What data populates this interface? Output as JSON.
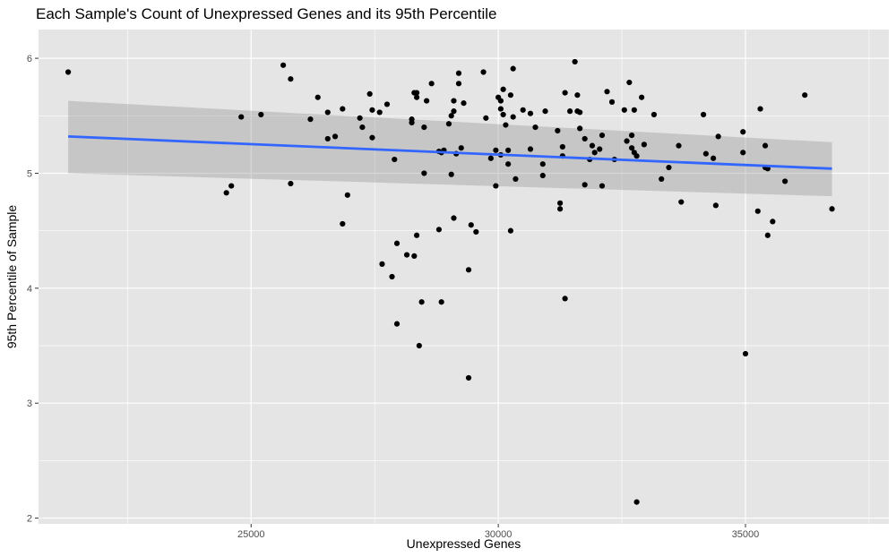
{
  "chart_data": {
    "type": "scatter",
    "title": "Each Sample's Count of Unexpressed Genes and its 95th Percentile",
    "xlabel": "Unexpressed Genes",
    "ylabel": "95th Percentile of Sample",
    "xlim": [
      20700,
      37900
    ],
    "ylim": [
      1.95,
      6.25
    ],
    "x_ticks": [
      25000,
      30000,
      35000
    ],
    "y_ticks": [
      2,
      3,
      4,
      5,
      6
    ],
    "x_tick_labels": [
      "25000",
      "30000",
      "35000"
    ],
    "y_tick_labels": [
      "2",
      "3",
      "4",
      "5",
      "6"
    ],
    "grid": true,
    "legend": "none",
    "colors": {
      "panel": "#e5e5e5",
      "grid": "#ffffff",
      "points": "#000000",
      "trend_line": "#3366ff",
      "ribbon": "#999999"
    },
    "trend": {
      "method": "linear",
      "x": [
        21300,
        36750
      ],
      "y": [
        5.32,
        5.04
      ],
      "ci_lower": [
        5.0,
        4.8
      ],
      "ci_upper": [
        5.63,
        5.27
      ]
    },
    "points": [
      [
        21300,
        5.88
      ],
      [
        24500,
        4.83
      ],
      [
        24600,
        4.89
      ],
      [
        24800,
        5.49
      ],
      [
        25200,
        5.51
      ],
      [
        25650,
        5.94
      ],
      [
        25800,
        4.91
      ],
      [
        25800,
        5.82
      ],
      [
        26200,
        5.47
      ],
      [
        26350,
        5.66
      ],
      [
        26550,
        5.3
      ],
      [
        26550,
        5.53
      ],
      [
        26700,
        5.32
      ],
      [
        26850,
        5.56
      ],
      [
        26850,
        4.56
      ],
      [
        26950,
        4.81
      ],
      [
        27200,
        5.48
      ],
      [
        27250,
        5.4
      ],
      [
        27400,
        5.69
      ],
      [
        27450,
        5.55
      ],
      [
        27450,
        5.31
      ],
      [
        27600,
        5.53
      ],
      [
        27650,
        4.21
      ],
      [
        27750,
        5.6
      ],
      [
        27850,
        4.1
      ],
      [
        27900,
        5.12
      ],
      [
        27950,
        4.39
      ],
      [
        27950,
        3.69
      ],
      [
        28150,
        4.29
      ],
      [
        28250,
        5.47
      ],
      [
        28250,
        5.44
      ],
      [
        28300,
        5.7
      ],
      [
        28300,
        4.28
      ],
      [
        28350,
        5.7
      ],
      [
        28350,
        5.66
      ],
      [
        28350,
        4.46
      ],
      [
        28400,
        3.5
      ],
      [
        28450,
        3.88
      ],
      [
        28500,
        5.0
      ],
      [
        28500,
        5.4
      ],
      [
        28550,
        5.63
      ],
      [
        28650,
        5.78
      ],
      [
        28800,
        5.19
      ],
      [
        28800,
        4.51
      ],
      [
        28850,
        5.18
      ],
      [
        28850,
        3.88
      ],
      [
        28900,
        5.2
      ],
      [
        29000,
        5.43
      ],
      [
        29050,
        5.5
      ],
      [
        29050,
        4.99
      ],
      [
        29100,
        5.63
      ],
      [
        29100,
        5.54
      ],
      [
        29100,
        4.61
      ],
      [
        29150,
        5.17
      ],
      [
        29200,
        5.78
      ],
      [
        29200,
        5.87
      ],
      [
        29250,
        5.22
      ],
      [
        29300,
        5.61
      ],
      [
        29400,
        3.22
      ],
      [
        29400,
        4.16
      ],
      [
        29450,
        4.55
      ],
      [
        29550,
        4.49
      ],
      [
        29700,
        5.88
      ],
      [
        29750,
        5.48
      ],
      [
        29850,
        5.13
      ],
      [
        29950,
        5.2
      ],
      [
        29950,
        4.89
      ],
      [
        30000,
        5.66
      ],
      [
        30050,
        5.63
      ],
      [
        30050,
        5.56
      ],
      [
        30050,
        5.16
      ],
      [
        30100,
        5.73
      ],
      [
        30100,
        5.51
      ],
      [
        30150,
        5.42
      ],
      [
        30200,
        5.08
      ],
      [
        30200,
        5.2
      ],
      [
        30250,
        5.68
      ],
      [
        30250,
        4.5
      ],
      [
        30300,
        5.91
      ],
      [
        30300,
        5.49
      ],
      [
        30350,
        4.95
      ],
      [
        30500,
        5.55
      ],
      [
        30650,
        5.21
      ],
      [
        30650,
        5.52
      ],
      [
        30750,
        5.4
      ],
      [
        30900,
        5.08
      ],
      [
        30900,
        4.98
      ],
      [
        30950,
        5.54
      ],
      [
        31200,
        5.37
      ],
      [
        31250,
        4.74
      ],
      [
        31250,
        4.69
      ],
      [
        31300,
        5.23
      ],
      [
        31300,
        5.15
      ],
      [
        31350,
        5.7
      ],
      [
        31350,
        3.91
      ],
      [
        31450,
        5.54
      ],
      [
        31550,
        5.97
      ],
      [
        31600,
        5.68
      ],
      [
        31600,
        5.54
      ],
      [
        31650,
        5.39
      ],
      [
        31650,
        5.53
      ],
      [
        31750,
        5.3
      ],
      [
        31750,
        4.9
      ],
      [
        31850,
        5.12
      ],
      [
        31900,
        5.24
      ],
      [
        31950,
        5.18
      ],
      [
        32050,
        5.21
      ],
      [
        32100,
        5.33
      ],
      [
        32100,
        4.89
      ],
      [
        32200,
        5.71
      ],
      [
        32300,
        5.62
      ],
      [
        32350,
        5.12
      ],
      [
        32550,
        5.55
      ],
      [
        32600,
        5.28
      ],
      [
        32650,
        5.79
      ],
      [
        32700,
        5.33
      ],
      [
        32700,
        5.22
      ],
      [
        32750,
        5.55
      ],
      [
        32750,
        5.18
      ],
      [
        32800,
        5.15
      ],
      [
        32800,
        2.14
      ],
      [
        32900,
        5.66
      ],
      [
        32950,
        5.25
      ],
      [
        33150,
        5.51
      ],
      [
        33300,
        4.95
      ],
      [
        33450,
        5.05
      ],
      [
        33650,
        5.24
      ],
      [
        33700,
        4.75
      ],
      [
        34150,
        5.51
      ],
      [
        34200,
        5.17
      ],
      [
        34350,
        5.13
      ],
      [
        34400,
        4.72
      ],
      [
        34450,
        5.32
      ],
      [
        34950,
        5.36
      ],
      [
        34950,
        5.18
      ],
      [
        35000,
        3.43
      ],
      [
        35250,
        4.67
      ],
      [
        35300,
        5.56
      ],
      [
        35400,
        5.24
      ],
      [
        35400,
        5.05
      ],
      [
        35450,
        5.04
      ],
      [
        35450,
        4.46
      ],
      [
        35550,
        4.58
      ],
      [
        35800,
        4.93
      ],
      [
        36200,
        5.68
      ],
      [
        36750,
        4.69
      ]
    ]
  }
}
